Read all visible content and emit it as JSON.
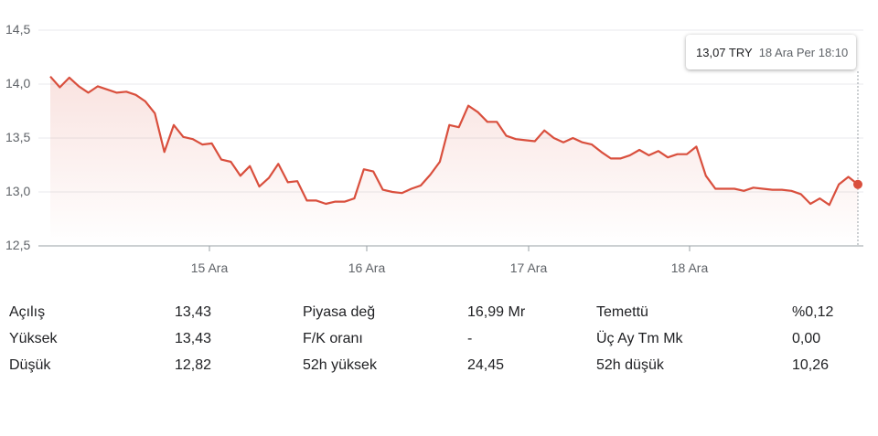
{
  "chart_data": {
    "type": "line",
    "title": "",
    "xlabel": "",
    "ylabel": "",
    "ylim": [
      12.5,
      14.5
    ],
    "yticks": [
      "12,5",
      "13,0",
      "13,5",
      "14,0",
      "14,5"
    ],
    "xticks": [
      "15 Ara",
      "16 Ara",
      "17 Ara",
      "18 Ara"
    ],
    "grid": "horizontal",
    "color": "#d94f3d",
    "series": [
      {
        "values": [
          14.07,
          13.97,
          14.06,
          13.98,
          13.92,
          13.98,
          13.95,
          13.92,
          13.93,
          13.9,
          13.84,
          13.73,
          13.37,
          13.62,
          13.51,
          13.49,
          13.44,
          13.45,
          13.3,
          13.28,
          13.15,
          13.24,
          13.05,
          13.13,
          13.26,
          13.09,
          13.1,
          12.92,
          12.92,
          12.89,
          12.91,
          12.91,
          12.94,
          13.21,
          13.19,
          13.02,
          13.0,
          12.99,
          13.03,
          13.06,
          13.16,
          13.28,
          13.62,
          13.6,
          13.8,
          13.74,
          13.65,
          13.65,
          13.52,
          13.49,
          13.48,
          13.47,
          13.57,
          13.5,
          13.46,
          13.5,
          13.46,
          13.44,
          13.37,
          13.31,
          13.31,
          13.34,
          13.39,
          13.34,
          13.38,
          13.32,
          13.35,
          13.35,
          13.42,
          13.15,
          13.03,
          13.03,
          13.03,
          13.01,
          13.04,
          13.03,
          13.02,
          13.02,
          13.01,
          12.98,
          12.89,
          12.94,
          12.88,
          13.07,
          13.14,
          13.07
        ]
      }
    ],
    "current": {
      "price": "13,07 TRY",
      "time": "18 Ara Per 18:10"
    }
  },
  "stats": {
    "rows": [
      [
        {
          "label": "Açılış",
          "value": "13,43"
        },
        {
          "label": "Piyasa değ",
          "value": "16,99 Mr"
        },
        {
          "label": "Temettü",
          "value": "%0,12"
        }
      ],
      [
        {
          "label": "Yüksek",
          "value": "13,43"
        },
        {
          "label": "F/K oranı",
          "value": "-"
        },
        {
          "label": "Üç Ay Tm Mk",
          "value": "0,00"
        }
      ],
      [
        {
          "label": "Düşük",
          "value": "12,82"
        },
        {
          "label": "52h yüksek",
          "value": "24,45"
        },
        {
          "label": "52h düşük",
          "value": "10,26"
        }
      ]
    ]
  }
}
